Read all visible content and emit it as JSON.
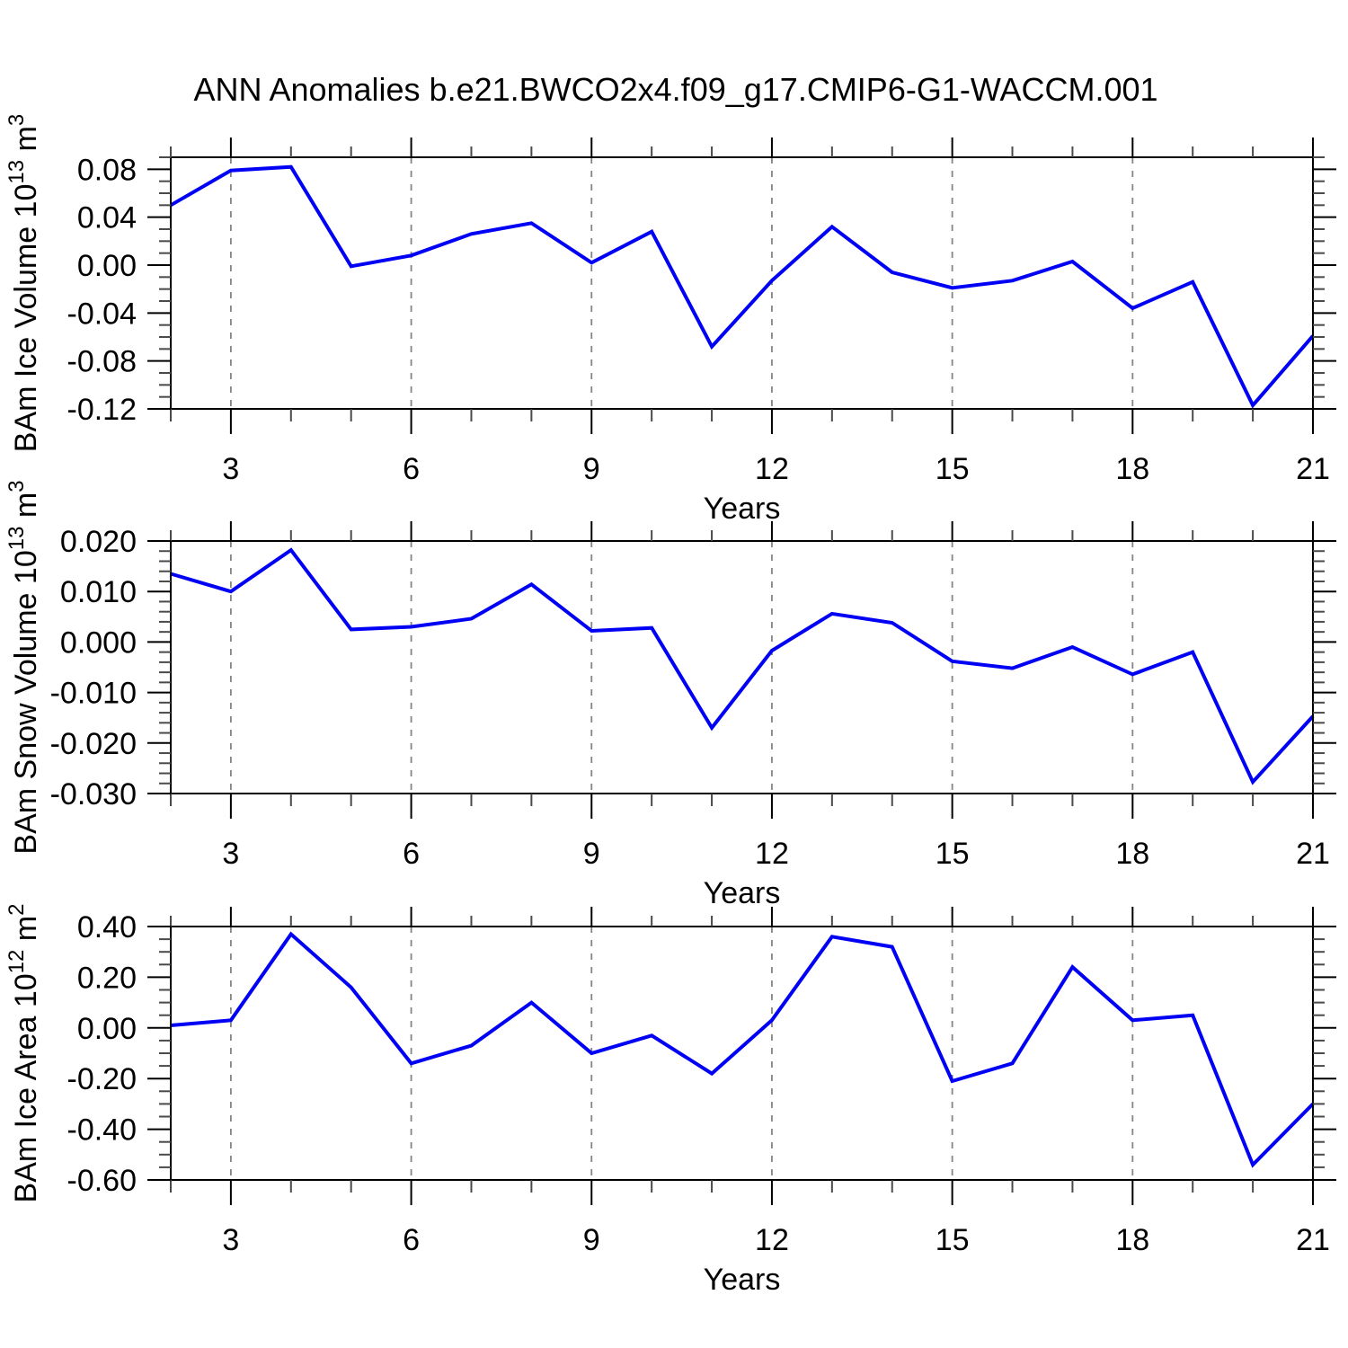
{
  "title": "ANN Anomalies b.e21.BWCO2x4.f09_g17.CMIP6-G1-WACCM.001",
  "axis": {
    "xlabel": "Years",
    "x_start": 2,
    "x_end": 21,
    "x_major_ticks": [
      3,
      6,
      9,
      12,
      15,
      18,
      21
    ],
    "x_minor_step": 1,
    "grid_years": [
      3,
      6,
      9,
      12,
      15,
      18
    ]
  },
  "style": {
    "line_color": "#0000F5",
    "grid_color": "#858585",
    "axis_color": "#000000",
    "minor_tick_color": "#4a4a4a",
    "text_color": "#000000"
  },
  "chart_data": [
    {
      "type": "line",
      "name": "ice-volume",
      "ylabel_segments": [
        {
          "t": "BAm Ice Volume 10"
        },
        {
          "t": "13",
          "sup": true
        },
        {
          "t": " m"
        },
        {
          "t": "3",
          "sup": true
        }
      ],
      "x": [
        2,
        3,
        4,
        5,
        6,
        7,
        8,
        9,
        10,
        11,
        12,
        13,
        14,
        15,
        16,
        17,
        18,
        19,
        20,
        21
      ],
      "values": [
        0.05,
        0.079,
        0.082,
        -0.001,
        0.008,
        0.026,
        0.035,
        0.002,
        0.028,
        -0.068,
        -0.013,
        0.032,
        -0.006,
        -0.019,
        -0.013,
        0.003,
        -0.036,
        -0.014,
        -0.117,
        -0.059
      ],
      "ylim": [
        -0.12,
        0.09
      ],
      "ytick_values": [
        0.08,
        0.04,
        0.0,
        -0.04,
        -0.08,
        -0.12
      ],
      "ytick_labels": [
        "0.08",
        "0.04",
        "0.00",
        "-0.04",
        "-0.08",
        "-0.12"
      ],
      "yminor_step": 0.01
    },
    {
      "type": "line",
      "name": "snow-volume",
      "ylabel_segments": [
        {
          "t": "BAm Snow Volume 10"
        },
        {
          "t": "13",
          "sup": true
        },
        {
          "t": " m"
        },
        {
          "t": "3",
          "sup": true
        }
      ],
      "x": [
        2,
        3,
        4,
        5,
        6,
        7,
        8,
        9,
        10,
        11,
        12,
        13,
        14,
        15,
        16,
        17,
        18,
        19,
        20,
        21
      ],
      "values": [
        0.0135,
        0.01,
        0.0182,
        0.0025,
        0.003,
        0.0046,
        0.0114,
        0.0022,
        0.0028,
        -0.017,
        -0.0017,
        0.0056,
        0.0038,
        -0.0038,
        -0.0052,
        -0.001,
        -0.0064,
        -0.002,
        -0.0277,
        -0.0147
      ],
      "ylim": [
        -0.03,
        0.02
      ],
      "ytick_values": [
        0.02,
        0.01,
        0.0,
        -0.01,
        -0.02,
        -0.03
      ],
      "ytick_labels": [
        "0.020",
        "0.010",
        "0.000",
        "-0.010",
        "-0.020",
        "-0.030"
      ],
      "yminor_step": 0.002
    },
    {
      "type": "line",
      "name": "ice-area",
      "ylabel_segments": [
        {
          "t": "BAm Ice Area 10"
        },
        {
          "t": "12",
          "sup": true
        },
        {
          "t": " m"
        },
        {
          "t": "2",
          "sup": true
        }
      ],
      "x": [
        2,
        3,
        4,
        5,
        6,
        7,
        8,
        9,
        10,
        11,
        12,
        13,
        14,
        15,
        16,
        17,
        18,
        19,
        20,
        21
      ],
      "values": [
        0.01,
        0.03,
        0.37,
        0.16,
        -0.14,
        -0.07,
        0.1,
        -0.1,
        -0.03,
        -0.18,
        0.03,
        0.36,
        0.32,
        -0.21,
        -0.14,
        0.24,
        0.03,
        0.05,
        -0.54,
        -0.3
      ],
      "ylim": [
        -0.6,
        0.4
      ],
      "ytick_values": [
        0.4,
        0.2,
        0.0,
        -0.2,
        -0.4,
        -0.6
      ],
      "ytick_labels": [
        "0.40",
        "0.20",
        "0.00",
        "-0.20",
        "-0.40",
        "-0.60"
      ],
      "yminor_step": 0.05
    }
  ]
}
